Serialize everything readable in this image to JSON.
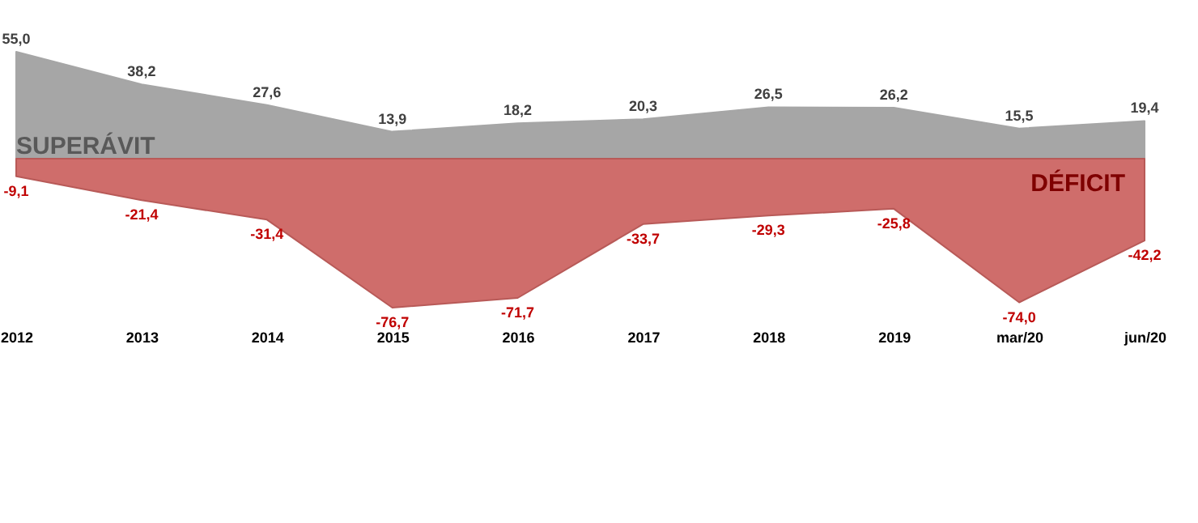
{
  "chart_data": {
    "type": "area",
    "categories": [
      "2012",
      "2013",
      "2014",
      "2015",
      "2016",
      "2017",
      "2018",
      "2019",
      "mar/20",
      "jun/20"
    ],
    "series": [
      {
        "name": "SUPERÁVIT",
        "color": "#a6a6a6",
        "values": [
          55.0,
          38.2,
          27.6,
          13.9,
          18.2,
          20.3,
          26.5,
          26.2,
          15.5,
          19.4
        ],
        "value_labels": [
          "55,0",
          "38,2",
          "27,6",
          "13,9",
          "18,2",
          "20,3",
          "26,5",
          "26,2",
          "15,5",
          "19,4"
        ]
      },
      {
        "name": "DÉFICIT",
        "color": "#cf6d6b",
        "values": [
          -9.1,
          -21.4,
          -31.4,
          -76.7,
          -71.7,
          -33.7,
          -29.3,
          -25.8,
          -74.0,
          -42.2
        ],
        "value_labels": [
          "-9,1",
          "-21,4",
          "-31,4",
          "-76,7",
          "-71,7",
          "-33,7",
          "-29,3",
          "-25,8",
          "-74,0",
          "-42,2"
        ]
      }
    ]
  }
}
